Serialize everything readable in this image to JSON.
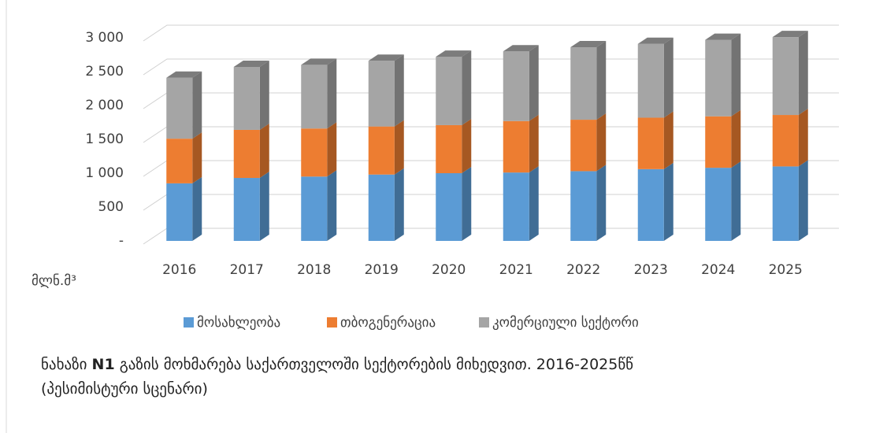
{
  "chart_data": {
    "type": "bar3d_stacked",
    "categories": [
      "2016",
      "2017",
      "2018",
      "2019",
      "2020",
      "2021",
      "2022",
      "2023",
      "2024",
      "2025"
    ],
    "series": [
      {
        "name": "მოსახლეობა",
        "color": "#5b9bd5",
        "values": [
          850,
          930,
          950,
          980,
          1000,
          1010,
          1030,
          1060,
          1080,
          1100
        ]
      },
      {
        "name": "თბოგენერაცია",
        "color": "#ed7d31",
        "values": [
          660,
          710,
          710,
          710,
          710,
          760,
          760,
          760,
          760,
          760
        ]
      },
      {
        "name": "კომერციული სექტორი",
        "color": "#a5a5a5",
        "values": [
          900,
          930,
          940,
          970,
          1010,
          1030,
          1070,
          1090,
          1130,
          1150
        ]
      }
    ],
    "ylim": [
      0,
      3000
    ],
    "yticks": [
      {
        "value": 0,
        "label": "-"
      },
      500,
      {
        "value": 1000,
        "label": "1 000"
      },
      {
        "value": 1500,
        "label": "1 500"
      },
      {
        "value": 2000,
        "label": "2 000"
      },
      {
        "value": 2500,
        "label": "2 500"
      },
      {
        "value": 3000,
        "label": "3 000"
      }
    ],
    "grid": true,
    "unit_label": "მლნ.მ³",
    "caption": {
      "label": "ნახაზი",
      "number": "N1",
      "text": "გაზის მოხმარება საქართველოში სექტორების მიხედვით.  2016-2025წწ"
    },
    "caption_line2": "(პესიმისტური სცენარი)"
  }
}
